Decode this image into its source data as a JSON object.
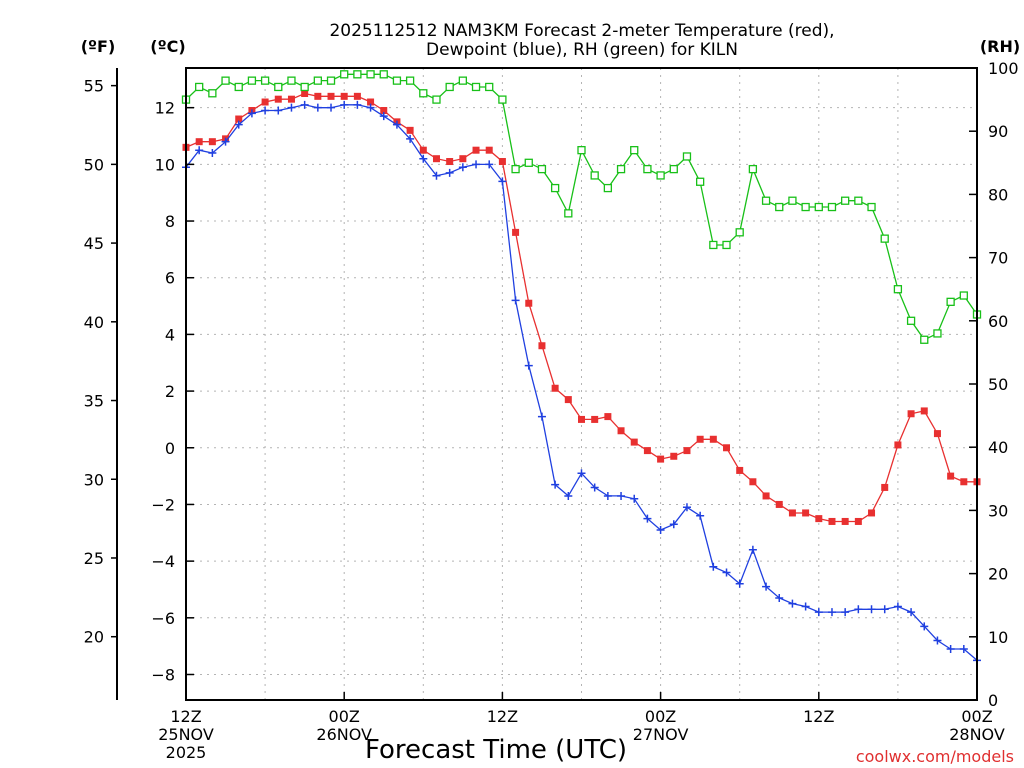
{
  "chart_data": {
    "type": "line",
    "title_line1": "2025112512 NAM3KM Forecast 2-meter Temperature (red),",
    "title_line2": "Dewpoint (blue), RH (green) for KILN",
    "xlabel": "Forecast Time (UTC)",
    "credit": "coolwx.com/models",
    "units": {
      "fahrenheit": "(ºF)",
      "celsius": "(ºC)",
      "rh": "(RH)"
    },
    "x_range_hours": [
      0,
      60
    ],
    "celsius_range": [
      -8.9,
      13.4
    ],
    "rh_range": [
      0,
      100
    ],
    "fahrenheit_ticks": [
      20,
      25,
      30,
      35,
      40,
      45,
      50,
      55
    ],
    "celsius_ticks": [
      -8,
      -6,
      -4,
      -2,
      0,
      2,
      4,
      6,
      8,
      10,
      12
    ],
    "celsius_tick_labels": [
      "−8",
      "−6",
      "−4",
      "−2",
      "0",
      "2",
      "4",
      "6",
      "8",
      "10",
      "12"
    ],
    "rh_ticks": [
      0,
      10,
      20,
      30,
      40,
      50,
      60,
      70,
      80,
      90,
      100
    ],
    "x_ticks": [
      {
        "hour": 0,
        "lines": [
          "12Z",
          "25NOV",
          "2025"
        ]
      },
      {
        "hour": 12,
        "lines": [
          "00Z",
          "26NOV"
        ]
      },
      {
        "hour": 24,
        "lines": [
          "12Z"
        ]
      },
      {
        "hour": 36,
        "lines": [
          "00Z",
          "27NOV"
        ]
      },
      {
        "hour": 48,
        "lines": [
          "12Z"
        ]
      },
      {
        "hour": 60,
        "lines": [
          "00Z",
          "28NOV"
        ]
      }
    ],
    "grid": true,
    "series": [
      {
        "name": "2-meter Temperature",
        "unit": "C",
        "color": "#e83030",
        "marker": "filled-square",
        "values": [
          10.6,
          10.8,
          10.8,
          10.9,
          11.6,
          11.9,
          12.2,
          12.3,
          12.3,
          12.5,
          12.4,
          12.4,
          12.4,
          12.4,
          12.2,
          11.9,
          11.5,
          11.2,
          10.5,
          10.2,
          10.1,
          10.2,
          10.5,
          10.5,
          10.1,
          7.6,
          5.1,
          3.6,
          2.1,
          1.7,
          1.0,
          1.0,
          1.1,
          0.6,
          0.2,
          -0.1,
          -0.4,
          -0.3,
          -0.1,
          0.3,
          0.3,
          0.0,
          -0.8,
          -1.2,
          -1.7,
          -2.0,
          -2.3,
          -2.3,
          -2.5,
          -2.6,
          -2.6,
          -2.6,
          -2.3,
          -1.4,
          0.1,
          1.2,
          1.3,
          0.5,
          -1.0,
          -1.2,
          -1.2
        ]
      },
      {
        "name": "Dewpoint",
        "unit": "C",
        "color": "#2040e0",
        "marker": "plus",
        "values": [
          9.9,
          10.5,
          10.4,
          10.8,
          11.4,
          11.8,
          11.9,
          11.9,
          12.0,
          12.1,
          12.0,
          12.0,
          12.1,
          12.1,
          12.0,
          11.7,
          11.4,
          10.9,
          10.2,
          9.6,
          9.7,
          9.9,
          10.0,
          10.0,
          9.4,
          5.2,
          2.9,
          1.1,
          -1.3,
          -1.7,
          -0.9,
          -1.4,
          -1.7,
          -1.7,
          -1.8,
          -2.5,
          -2.9,
          -2.7,
          -2.1,
          -2.4,
          -4.2,
          -4.4,
          -4.8,
          -3.6,
          -4.9,
          -5.3,
          -5.5,
          -5.6,
          -5.8,
          -5.8,
          -5.8,
          -5.7,
          -5.7,
          -5.7,
          -5.6,
          -5.8,
          -6.3,
          -6.8,
          -7.1,
          -7.1,
          -7.5
        ]
      },
      {
        "name": "RH",
        "unit": "%",
        "color": "#18c018",
        "marker": "open-square",
        "values": [
          95,
          97,
          96,
          98,
          97,
          98,
          98,
          97,
          98,
          97,
          98,
          98,
          99,
          99,
          99,
          99,
          98,
          98,
          96,
          95,
          97,
          98,
          97,
          97,
          95,
          84,
          85,
          84,
          81,
          77,
          87,
          83,
          81,
          84,
          87,
          84,
          83,
          84,
          86,
          82,
          72,
          72,
          74,
          84,
          79,
          78,
          79,
          78,
          78,
          78,
          79,
          79,
          78,
          73,
          65,
          60,
          57,
          58,
          63,
          64,
          61
        ]
      }
    ]
  }
}
